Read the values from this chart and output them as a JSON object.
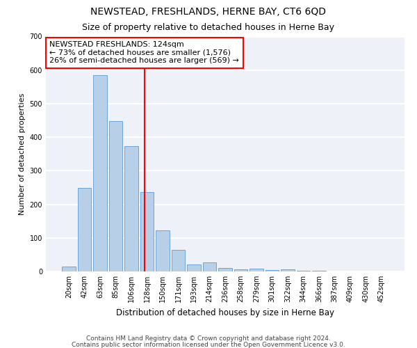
{
  "title": "NEWSTEAD, FRESHLANDS, HERNE BAY, CT6 6QD",
  "subtitle": "Size of property relative to detached houses in Herne Bay",
  "xlabel": "Distribution of detached houses by size in Herne Bay",
  "ylabel": "Number of detached properties",
  "footnote1": "Contains HM Land Registry data © Crown copyright and database right 2024.",
  "footnote2": "Contains public sector information licensed under the Open Government Licence v3.0.",
  "categories": [
    "20sqm",
    "42sqm",
    "63sqm",
    "85sqm",
    "106sqm",
    "128sqm",
    "150sqm",
    "171sqm",
    "193sqm",
    "214sqm",
    "236sqm",
    "258sqm",
    "279sqm",
    "301sqm",
    "322sqm",
    "344sqm",
    "366sqm",
    "387sqm",
    "409sqm",
    "430sqm",
    "452sqm"
  ],
  "values": [
    15,
    248,
    585,
    447,
    374,
    237,
    122,
    65,
    20,
    28,
    10,
    7,
    8,
    5,
    7,
    3,
    2,
    1,
    1,
    0,
    1
  ],
  "bar_color": "#b8cfe8",
  "bar_edge_color": "#5b9bd5",
  "vline_index": 4.85,
  "annotation_box_text": "NEWSTEAD FRESHLANDS: 124sqm\n← 73% of detached houses are smaller (1,576)\n26% of semi-detached houses are larger (569) →",
  "annotation_box_color": "white",
  "annotation_box_edge_color": "red",
  "vline_color": "red",
  "ylim": [
    0,
    700
  ],
  "yticks": [
    0,
    100,
    200,
    300,
    400,
    500,
    600,
    700
  ],
  "background_color": "#eef2f8",
  "grid_color": "white",
  "title_fontsize": 10,
  "subtitle_fontsize": 9,
  "xlabel_fontsize": 8.5,
  "ylabel_fontsize": 8,
  "tick_fontsize": 7,
  "annotation_fontsize": 8,
  "footnote_fontsize": 6.5
}
